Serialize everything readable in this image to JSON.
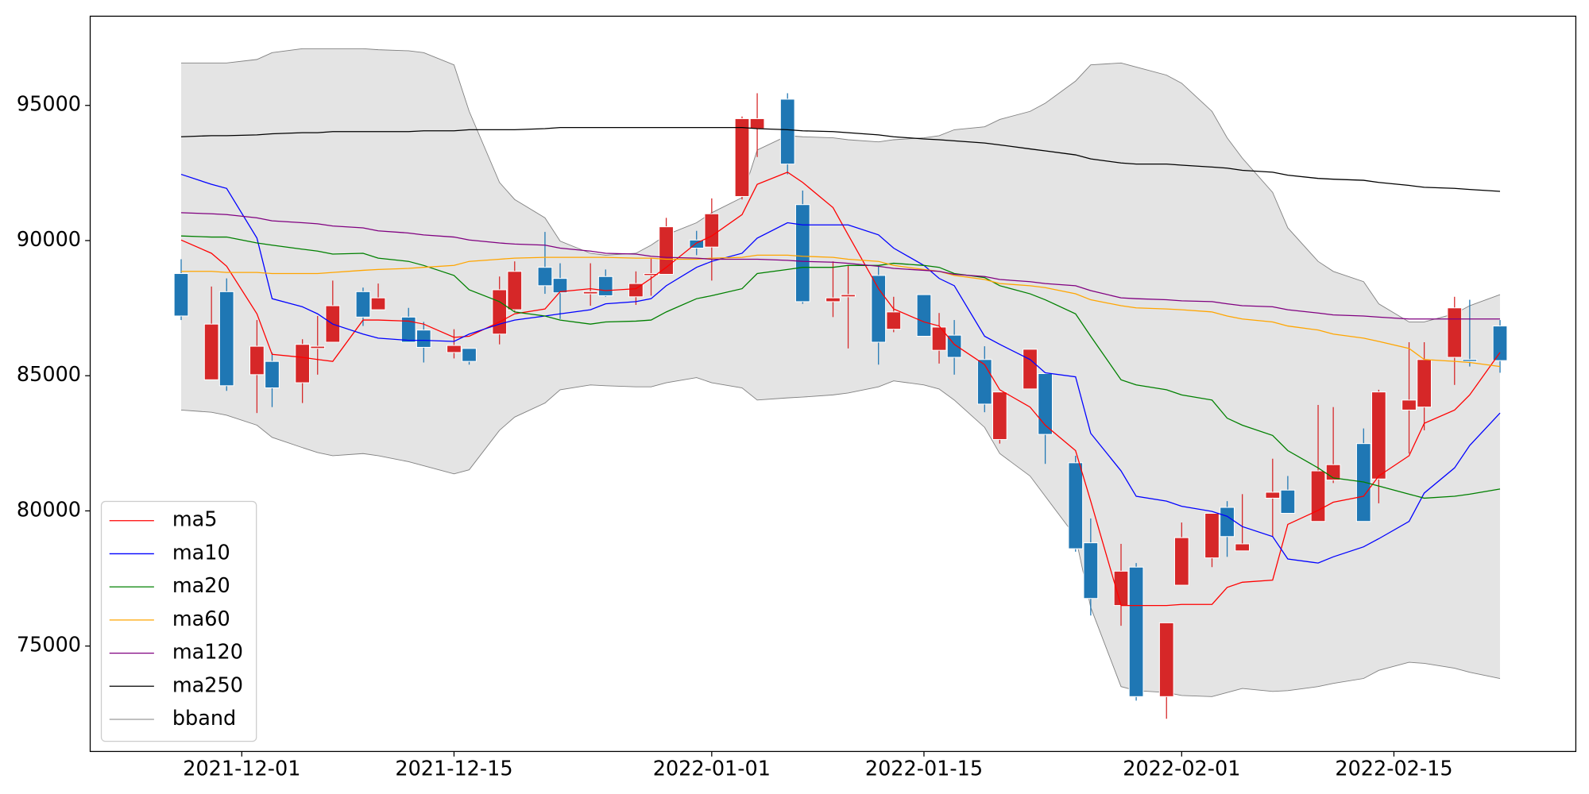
{
  "chart_data": {
    "type": "candlestick",
    "x": [
      "2021-11-27",
      "2021-11-29",
      "2021-11-30",
      "2021-12-02",
      "2021-12-03",
      "2021-12-05",
      "2021-12-06",
      "2021-12-07",
      "2021-12-09",
      "2021-12-10",
      "2021-12-12",
      "2021-12-13",
      "2021-12-15",
      "2021-12-16",
      "2021-12-18",
      "2021-12-19",
      "2021-12-21",
      "2021-12-22",
      "2021-12-24",
      "2021-12-25",
      "2021-12-27",
      "2021-12-28",
      "2021-12-29",
      "2021-12-31",
      "2022-01-01",
      "2022-01-03",
      "2022-01-04",
      "2022-01-06",
      "2022-01-07",
      "2022-01-09",
      "2022-01-10",
      "2022-01-12",
      "2022-01-13",
      "2022-01-15",
      "2022-01-16",
      "2022-01-17",
      "2022-01-19",
      "2022-01-20",
      "2022-01-22",
      "2022-01-23",
      "2022-01-25",
      "2022-01-26",
      "2022-01-28",
      "2022-01-29",
      "2022-01-31",
      "2022-02-01",
      "2022-02-03",
      "2022-02-04",
      "2022-02-05",
      "2022-02-07",
      "2022-02-08",
      "2022-02-10",
      "2022-02-11",
      "2022-02-13",
      "2022-02-14",
      "2022-02-16",
      "2022-02-17",
      "2022-02-19",
      "2022-02-20",
      "2022-02-22"
    ],
    "open": [
      88780,
      84850,
      88110,
      85040,
      85530,
      84740,
      86010,
      86240,
      88110,
      87440,
      87170,
      86690,
      85860,
      86010,
      86540,
      87440,
      89010,
      88600,
      88030,
      88670,
      87920,
      88710,
      88750,
      90020,
      89760,
      91630,
      94140,
      95230,
      91330,
      87740,
      87920,
      88710,
      86720,
      88000,
      85940,
      86500,
      85600,
      82640,
      84510,
      85080,
      81780,
      78820,
      76500,
      77920,
      73130,
      77250,
      78260,
      80130,
      78520,
      80470,
      80770,
      79610,
      81140,
      82490,
      81180,
      83730,
      83840,
      85680,
      85600,
      86840
    ],
    "high": [
      89310,
      88300,
      88600,
      87060,
      85860,
      86350,
      87210,
      88520,
      88260,
      88410,
      87510,
      86990,
      86720,
      86010,
      88670,
      89230,
      90320,
      89160,
      89160,
      88930,
      88860,
      89350,
      90840,
      90360,
      91560,
      94590,
      95450,
      95450,
      91850,
      89230,
      89080,
      89080,
      87920,
      88000,
      87320,
      87060,
      86090,
      84400,
      85980,
      85080,
      82040,
      79720,
      78780,
      78070,
      75860,
      79570,
      79910,
      80360,
      80620,
      81930,
      81290,
      83920,
      83840,
      83050,
      84480,
      86240,
      86240,
      87920,
      87810,
      87060
    ],
    "low": [
      87060,
      84850,
      84440,
      83620,
      83840,
      83990,
      85040,
      86240,
      86840,
      87440,
      86240,
      85490,
      85640,
      85410,
      86160,
      87360,
      88030,
      87100,
      87590,
      87920,
      87620,
      87960,
      88750,
      89460,
      88520,
      91520,
      93090,
      92450,
      87660,
      87170,
      86010,
      85410,
      86610,
      86460,
      85450,
      85040,
      83650,
      82490,
      84510,
      81740,
      78490,
      76130,
      75750,
      72980,
      72310,
      77250,
      77920,
      78300,
      78520,
      79050,
      79910,
      79610,
      81030,
      79610,
      80280,
      82120,
      82980,
      84660,
      85340,
      85110
    ],
    "close": [
      87210,
      86910,
      84630,
      86090,
      84550,
      86160,
      86090,
      87590,
      87170,
      87880,
      86240,
      86050,
      86120,
      85530,
      88180,
      88860,
      88330,
      88070,
      88110,
      87960,
      88410,
      88780,
      90510,
      89720,
      90990,
      94510,
      94510,
      92830,
      87740,
      87880,
      88000,
      86240,
      87360,
      86460,
      86800,
      85680,
      83950,
      84400,
      85980,
      82830,
      78600,
      76760,
      77770,
      73130,
      75860,
      79010,
      79910,
      79050,
      78780,
      80690,
      79910,
      81480,
      81710,
      79610,
      84400,
      84100,
      85600,
      87510,
      85530,
      85560
    ],
    "up_color": "#d62728",
    "down_color": "#1f77b4",
    "series": [
      {
        "name": "ma5",
        "color": "red",
        "values": [
          90020,
          89530,
          89050,
          87290,
          85790,
          85680,
          85600,
          85530,
          87060,
          87060,
          87020,
          86910,
          86420,
          86460,
          86990,
          87290,
          87470,
          88110,
          88220,
          88150,
          88220,
          88600,
          89010,
          89910,
          90170,
          90960,
          92080,
          92530,
          92150,
          91220,
          90210,
          88220,
          87470,
          86990,
          86840,
          86160,
          85410,
          84480,
          83840,
          83170,
          82230,
          80360,
          76500,
          76500,
          76500,
          76540,
          76540,
          77170,
          77360,
          77440,
          79500,
          80020,
          80320,
          80540,
          81290,
          82040,
          83240,
          83730,
          84290,
          85860
        ]
      },
      {
        "name": "ma10",
        "color": "blue",
        "values": [
          92450,
          92080,
          91930,
          90090,
          87850,
          87550,
          87290,
          86910,
          86540,
          86390,
          86310,
          86310,
          86270,
          86540,
          86910,
          87060,
          87210,
          87290,
          87440,
          87660,
          87740,
          87850,
          88330,
          89010,
          89230,
          89530,
          90090,
          90660,
          90580,
          90580,
          90580,
          90210,
          89720,
          89080,
          88600,
          88330,
          86460,
          86160,
          85600,
          85110,
          84960,
          82870,
          81480,
          80540,
          80360,
          80170,
          79980,
          79800,
          79420,
          79050,
          78220,
          78070,
          78300,
          78670,
          78970,
          79610,
          80660,
          81590,
          82420,
          83620
        ]
      },
      {
        "name": "ma20",
        "color": "green",
        "values": [
          90170,
          90130,
          90130,
          89910,
          89830,
          89680,
          89610,
          89500,
          89530,
          89350,
          89230,
          89080,
          88710,
          88180,
          87740,
          87360,
          87210,
          87060,
          86910,
          86990,
          87020,
          87060,
          87360,
          87850,
          87960,
          88220,
          88780,
          88930,
          89010,
          89010,
          89080,
          89080,
          89160,
          89080,
          89010,
          88780,
          88630,
          88330,
          88030,
          87810,
          87290,
          86460,
          84850,
          84660,
          84480,
          84290,
          84100,
          83430,
          83170,
          82790,
          82230,
          81590,
          81220,
          81070,
          80920,
          80620,
          80470,
          80540,
          80620,
          80810
        ]
      },
      {
        "name": "ma60",
        "color": "orange",
        "values": [
          88860,
          88860,
          88820,
          88820,
          88780,
          88780,
          88780,
          88820,
          88900,
          88930,
          88970,
          89010,
          89080,
          89230,
          89310,
          89350,
          89380,
          89380,
          89380,
          89380,
          89350,
          89350,
          89310,
          89310,
          89350,
          89380,
          89460,
          89460,
          89420,
          89380,
          89310,
          89230,
          89080,
          88930,
          88860,
          88710,
          88560,
          88410,
          88330,
          88260,
          88030,
          87810,
          87590,
          87510,
          87470,
          87440,
          87360,
          87210,
          87100,
          86990,
          86840,
          86690,
          86540,
          86390,
          86270,
          86010,
          85600,
          85530,
          85490,
          85340
        ]
      },
      {
        "name": "ma120",
        "color": "purple",
        "values": [
          91030,
          90990,
          90960,
          90840,
          90730,
          90660,
          90620,
          90540,
          90470,
          90360,
          90280,
          90210,
          90130,
          90020,
          89910,
          89870,
          89830,
          89720,
          89610,
          89530,
          89500,
          89420,
          89380,
          89350,
          89310,
          89310,
          89310,
          89270,
          89230,
          89200,
          89160,
          89050,
          88970,
          88900,
          88860,
          88750,
          88670,
          88560,
          88480,
          88410,
          88330,
          88150,
          87880,
          87850,
          87810,
          87770,
          87740,
          87660,
          87590,
          87550,
          87440,
          87320,
          87250,
          87210,
          87170,
          87100,
          87100,
          87100,
          87100,
          87100
        ]
      },
      {
        "name": "ma250",
        "color": "black",
        "values": [
          93840,
          93880,
          93880,
          93910,
          93950,
          93990,
          93990,
          94030,
          94030,
          94030,
          94030,
          94060,
          94060,
          94100,
          94100,
          94100,
          94140,
          94180,
          94180,
          94180,
          94180,
          94180,
          94180,
          94180,
          94180,
          94180,
          94140,
          94100,
          94060,
          94030,
          93990,
          93910,
          93840,
          93760,
          93730,
          93690,
          93610,
          93540,
          93390,
          93320,
          93170,
          93020,
          92870,
          92830,
          92830,
          92790,
          92720,
          92680,
          92600,
          92530,
          92420,
          92300,
          92270,
          92230,
          92150,
          92040,
          91970,
          91930,
          91890,
          91820
        ]
      }
    ],
    "band": {
      "name": "bband",
      "color": "gray",
      "fill": "#e4e4e4",
      "upper": [
        96570,
        96570,
        96570,
        96700,
        96950,
        97100,
        97100,
        97100,
        97100,
        97060,
        97020,
        96950,
        96500,
        94780,
        92150,
        91520,
        90840,
        89980,
        89530,
        89460,
        89530,
        89830,
        90210,
        90660,
        91030,
        91590,
        93350,
        93880,
        93840,
        93800,
        93730,
        93650,
        93730,
        93800,
        93880,
        94100,
        94210,
        94480,
        94780,
        95080,
        95900,
        96500,
        96570,
        96420,
        96120,
        95820,
        94780,
        93800,
        93050,
        91780,
        90470,
        89230,
        88860,
        88480,
        87660,
        86990,
        86990,
        87290,
        87590,
        88000
      ],
      "lower": [
        83730,
        83650,
        83540,
        83170,
        82720,
        82340,
        82160,
        82040,
        82120,
        82040,
        81820,
        81670,
        81370,
        81520,
        82980,
        83470,
        83990,
        84480,
        84660,
        84630,
        84590,
        84590,
        84740,
        84930,
        84740,
        84550,
        84100,
        84180,
        84210,
        84290,
        84360,
        84590,
        84810,
        84660,
        84510,
        84100,
        83090,
        82120,
        81290,
        80540,
        79050,
        76430,
        73500,
        73350,
        73280,
        73170,
        73130,
        73280,
        73430,
        73320,
        73350,
        73500,
        73620,
        73800,
        74100,
        74400,
        74360,
        74180,
        74030,
        73800
      ]
    },
    "xlim": [
      "2021-11-21",
      "2022-02-27"
    ],
    "xticks": [
      "2021-12-01",
      "2021-12-15",
      "2022-01-01",
      "2022-01-15",
      "2022-02-01",
      "2022-02-15"
    ],
    "ylim": [
      71100,
      98300
    ],
    "yticks": [
      75000,
      80000,
      85000,
      90000,
      95000
    ],
    "grid": false,
    "legend": "lower left"
  }
}
